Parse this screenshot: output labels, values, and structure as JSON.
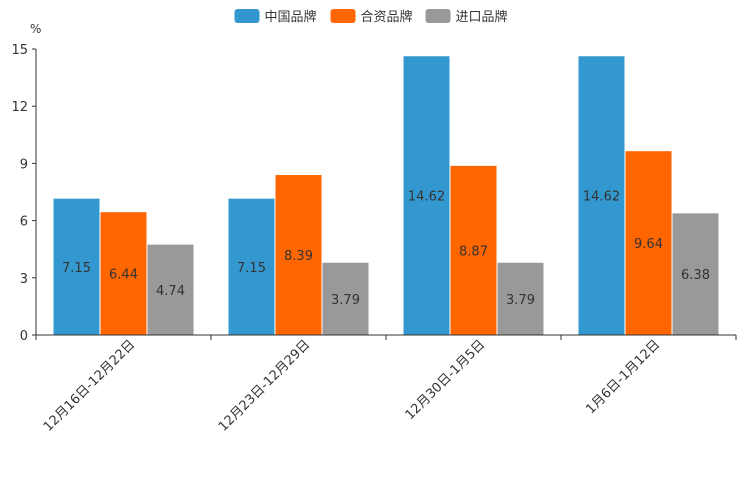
{
  "chart_data": {
    "type": "bar",
    "title": "",
    "ylabel": "%",
    "xlabel": "",
    "ylim": [
      0,
      15
    ],
    "yticks": [
      0,
      3,
      6,
      9,
      12,
      15
    ],
    "grid": false,
    "legend_position": "top-center",
    "categories": [
      "12月16日-12月22日",
      "12月23日-12月29日",
      "12月30日-1月5日",
      "1月6日-1月12日"
    ],
    "series": [
      {
        "name": "中国品牌",
        "color": "#3498d0",
        "values": [
          7.15,
          7.15,
          14.62,
          14.62
        ],
        "labels": [
          "7.15",
          "7.15",
          "14.62",
          "14.62"
        ]
      },
      {
        "name": "合资品牌",
        "color": "#ff6600",
        "values": [
          6.44,
          8.39,
          8.87,
          9.64
        ],
        "labels": [
          "6.44",
          "8.39",
          "8.87",
          "9.64"
        ]
      },
      {
        "name": "进口品牌",
        "color": "#999999",
        "values": [
          4.74,
          3.79,
          3.79,
          6.38
        ],
        "labels": [
          "4.74",
          "3.79",
          "3.79",
          "6.38"
        ]
      }
    ]
  }
}
